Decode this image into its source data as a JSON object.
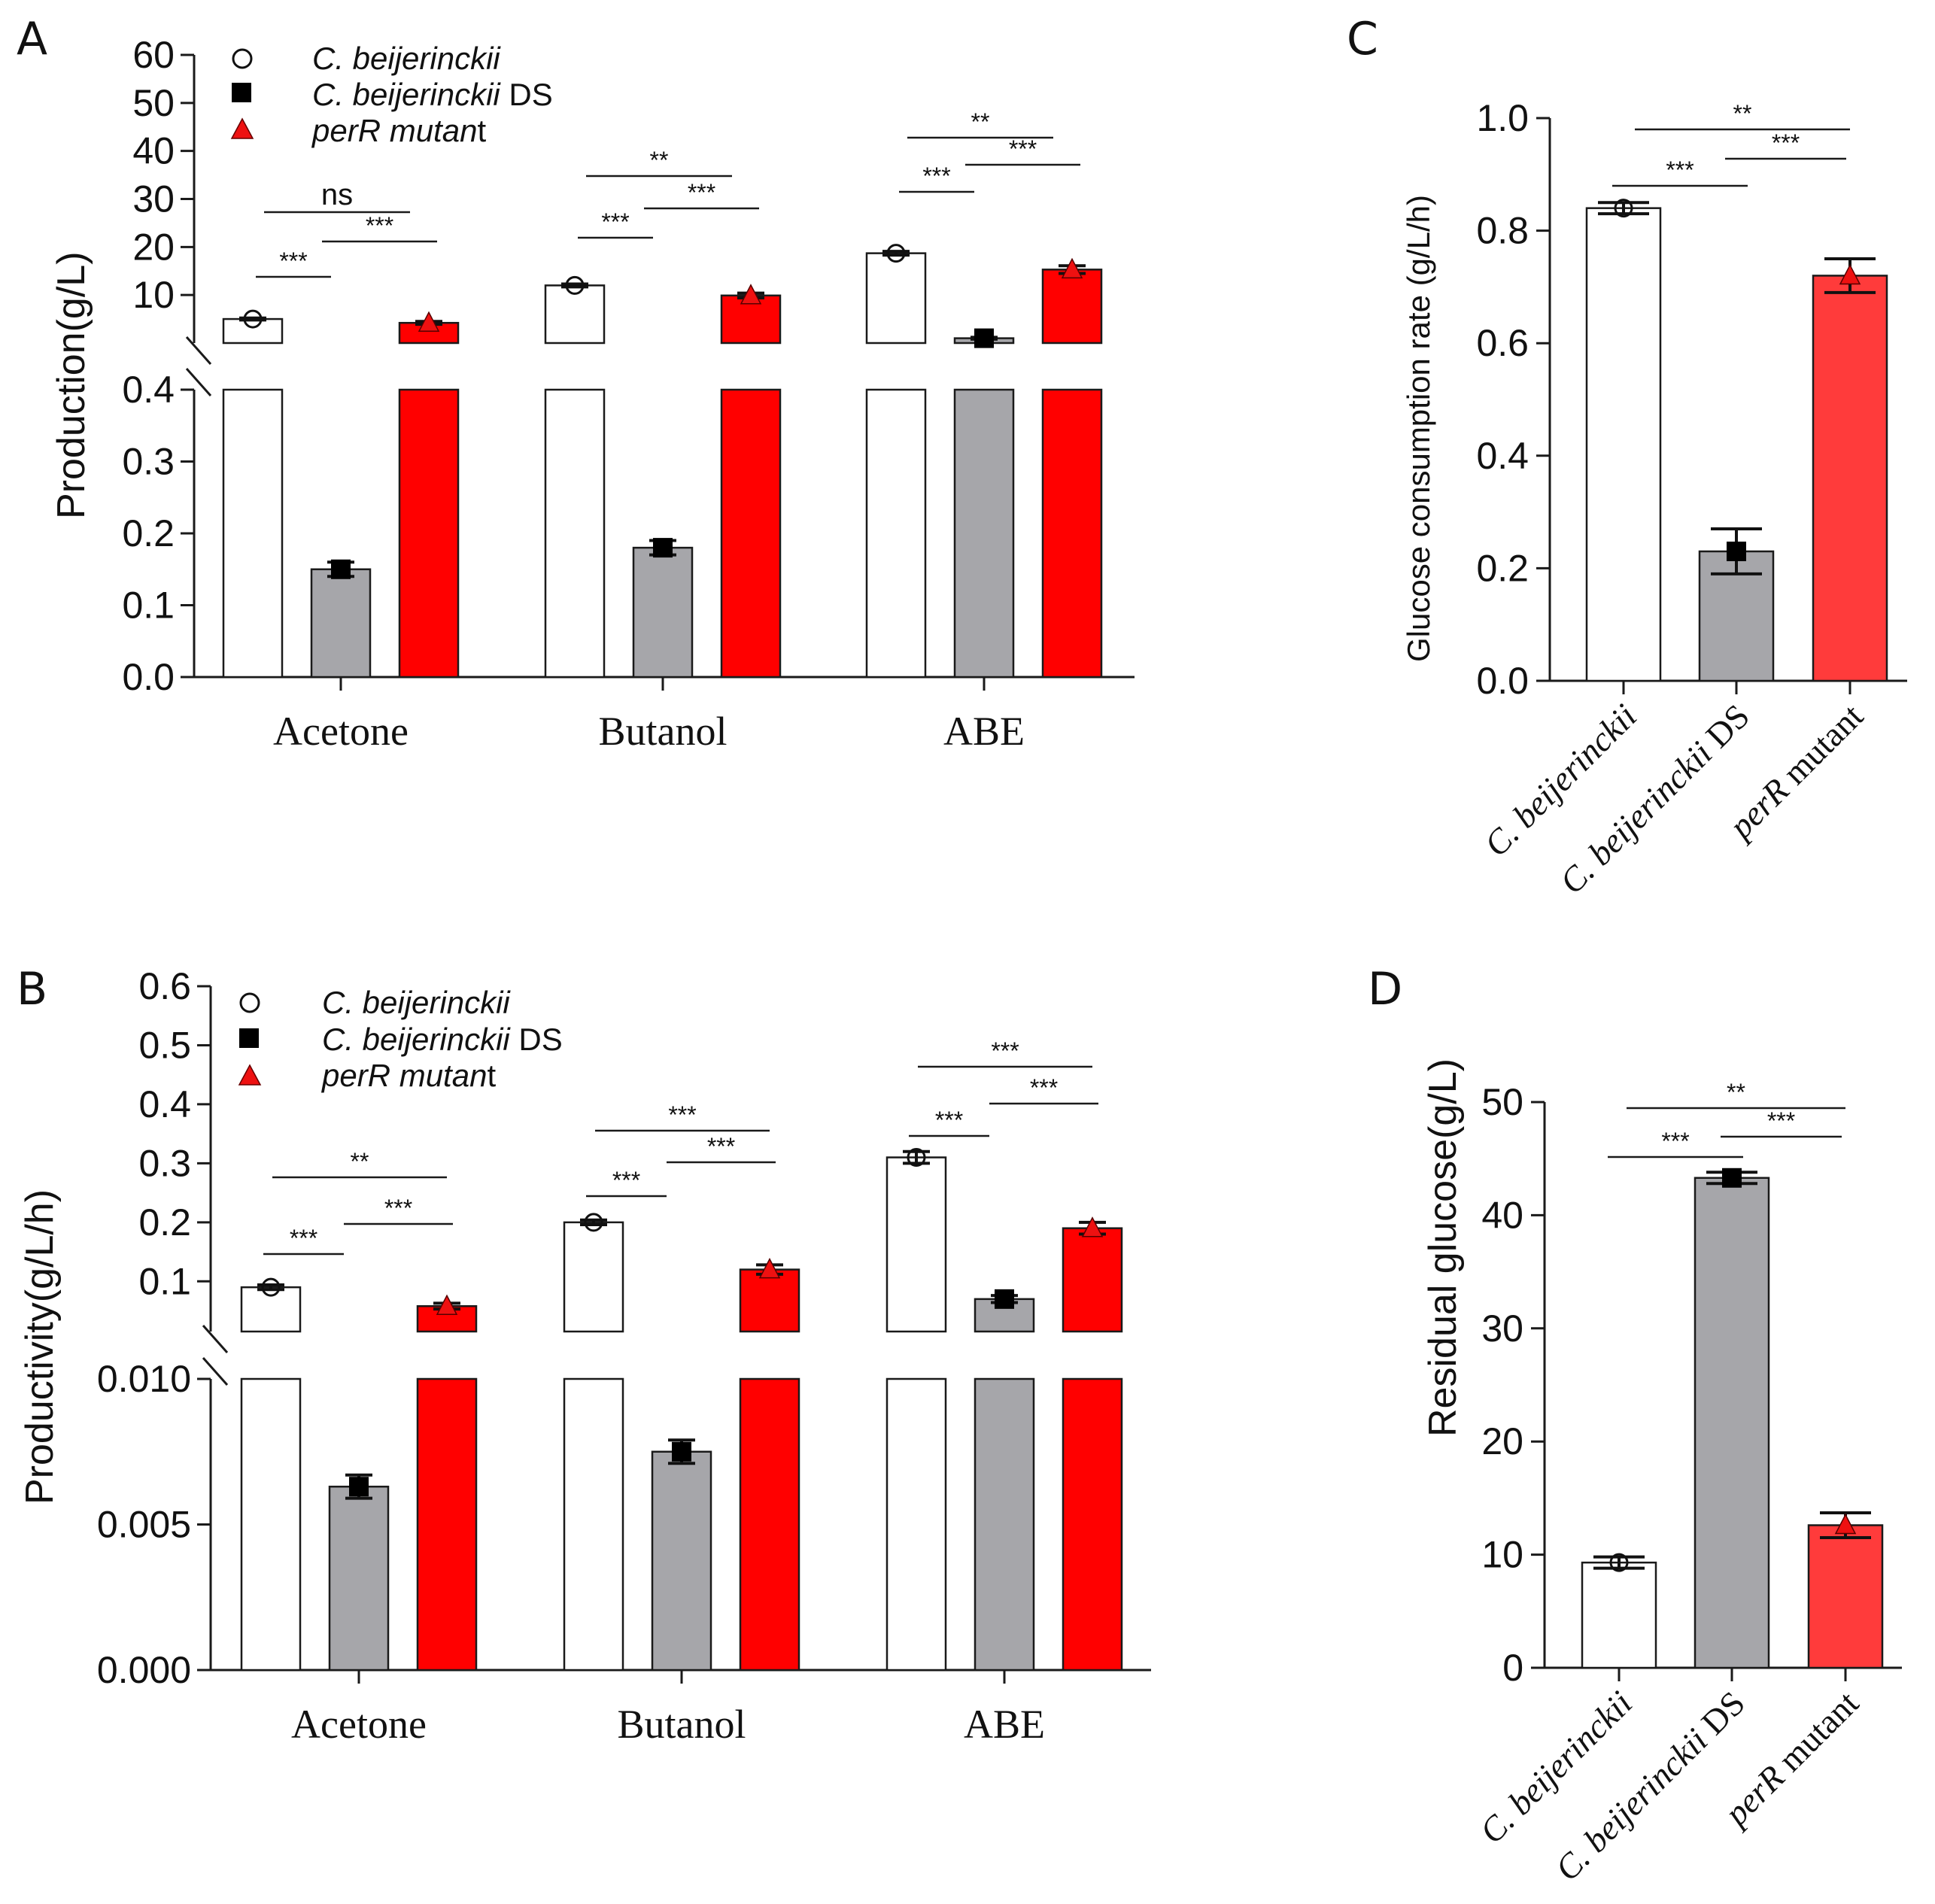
{
  "colors": {
    "open": "#ffffff",
    "ds": "#a6a6aa",
    "perR": "#ff0000",
    "perR_light": "#ff3b3b",
    "marker_open": "#ffffff",
    "marker_ds": "#000000",
    "marker_perR": "#ee1111",
    "axis": "#1a1a1a"
  },
  "legend": {
    "strain1": "C. beijerinckii",
    "strain2_italic": "C. beijerinckii",
    "strain2_suffix": " DS",
    "strain3_italic": "perR mutan",
    "strain3_suffix": "t"
  },
  "chart_data": [
    {
      "panel": "A",
      "type": "bar",
      "ylabel": "Production(g/L)",
      "categories": [
        "Acetone",
        "Butanol",
        "ABE"
      ],
      "axis_break": true,
      "upper_ticks": [
        "10",
        "20",
        "30",
        "40",
        "50",
        "60"
      ],
      "lower_ticks": [
        "0.0",
        "0.1",
        "0.2",
        "0.3",
        "0.4"
      ],
      "upper_range": [
        0,
        60
      ],
      "lower_range": [
        0,
        0.4
      ],
      "series": [
        {
          "name": "C. beijerinckii",
          "values": [
            5.0,
            12.0,
            18.7
          ],
          "errors": [
            0.2,
            0.3,
            0.4
          ]
        },
        {
          "name": "C. beijerinckii DS",
          "values": [
            0.15,
            0.18,
            1.0
          ],
          "errors": [
            0.01,
            0.01,
            0.2
          ]
        },
        {
          "name": "perR mutant",
          "values": [
            4.2,
            9.9,
            15.3
          ],
          "errors": [
            0.3,
            0.5,
            0.8
          ]
        }
      ],
      "significance": [
        {
          "group": 0,
          "from": 0,
          "to": 1,
          "label": "***"
        },
        {
          "group": 0,
          "from": 1,
          "to": 2,
          "label": "***"
        },
        {
          "group": 0,
          "from": 0,
          "to": 2,
          "label": "ns"
        },
        {
          "group": 1,
          "from": 0,
          "to": 1,
          "label": "***"
        },
        {
          "group": 1,
          "from": 1,
          "to": 2,
          "label": "***"
        },
        {
          "group": 1,
          "from": 0,
          "to": 2,
          "label": "**"
        },
        {
          "group": 2,
          "from": 0,
          "to": 1,
          "label": "***"
        },
        {
          "group": 2,
          "from": 1,
          "to": 2,
          "label": "***"
        },
        {
          "group": 2,
          "from": 0,
          "to": 2,
          "label": "**"
        }
      ]
    },
    {
      "panel": "B",
      "type": "bar",
      "ylabel": "Productivity(g/L/h)",
      "categories": [
        "Acetone",
        "Butanol",
        "ABE"
      ],
      "axis_break": true,
      "upper_ticks": [
        "0.1",
        "0.2",
        "0.3",
        "0.4",
        "0.5",
        "0.6"
      ],
      "lower_ticks": [
        "0.000",
        "0.005",
        "0.010"
      ],
      "upper_range": [
        0.015,
        0.6
      ],
      "lower_range": [
        0,
        0.01
      ],
      "series": [
        {
          "name": "C. beijerinckii",
          "values": [
            0.09,
            0.2,
            0.31
          ],
          "errors": [
            0.004,
            0.004,
            0.01
          ]
        },
        {
          "name": "C. beijerinckii DS",
          "values": [
            0.0063,
            0.0075,
            0.07
          ],
          "errors": [
            0.0004,
            0.0004,
            0.006
          ]
        },
        {
          "name": "perR mutant",
          "values": [
            0.058,
            0.12,
            0.19
          ],
          "errors": [
            0.005,
            0.008,
            0.01
          ]
        }
      ],
      "significance": [
        {
          "group": 0,
          "from": 0,
          "to": 1,
          "label": "***"
        },
        {
          "group": 0,
          "from": 1,
          "to": 2,
          "label": "***"
        },
        {
          "group": 0,
          "from": 0,
          "to": 2,
          "label": "**"
        },
        {
          "group": 1,
          "from": 0,
          "to": 1,
          "label": "***"
        },
        {
          "group": 1,
          "from": 1,
          "to": 2,
          "label": "***"
        },
        {
          "group": 1,
          "from": 0,
          "to": 2,
          "label": "***"
        },
        {
          "group": 2,
          "from": 0,
          "to": 1,
          "label": "***"
        },
        {
          "group": 2,
          "from": 1,
          "to": 2,
          "label": "***"
        },
        {
          "group": 2,
          "from": 0,
          "to": 2,
          "label": "***"
        }
      ]
    },
    {
      "panel": "C",
      "type": "bar",
      "ylabel": "Glucose consumption rate (g/L/h)",
      "ticks": [
        "0.0",
        "0.2",
        "0.4",
        "0.6",
        "0.8",
        "1.0"
      ],
      "ylim": [
        0,
        1.0
      ],
      "categories": [
        {
          "italic": "C. beijerinckii",
          "suffix": ""
        },
        {
          "italic": "C. beijerinckii",
          "suffix": " DS"
        },
        {
          "italic": "perR",
          "suffix": " mutant"
        }
      ],
      "values": [
        0.84,
        0.23,
        0.72
      ],
      "errors": [
        0.01,
        0.04,
        0.03
      ],
      "significance": [
        {
          "from": 0,
          "to": 1,
          "label": "***"
        },
        {
          "from": 1,
          "to": 2,
          "label": "***"
        },
        {
          "from": 0,
          "to": 2,
          "label": "**"
        }
      ]
    },
    {
      "panel": "D",
      "type": "bar",
      "ylabel": "Residual glucose(g/L)",
      "ticks": [
        "0",
        "10",
        "20",
        "30",
        "40",
        "50"
      ],
      "ylim": [
        0,
        50
      ],
      "categories": [
        {
          "italic": "C. beijerinckii",
          "suffix": ""
        },
        {
          "italic": "C. beijerinckii",
          "suffix": " DS"
        },
        {
          "italic": "perR",
          "suffix": " mutant"
        }
      ],
      "values": [
        9.3,
        43.3,
        12.6
      ],
      "errors": [
        0.5,
        0.5,
        1.1
      ],
      "significance": [
        {
          "from": 0,
          "to": 1,
          "label": "***"
        },
        {
          "from": 1,
          "to": 2,
          "label": "***"
        },
        {
          "from": 0,
          "to": 2,
          "label": "**"
        }
      ]
    }
  ]
}
